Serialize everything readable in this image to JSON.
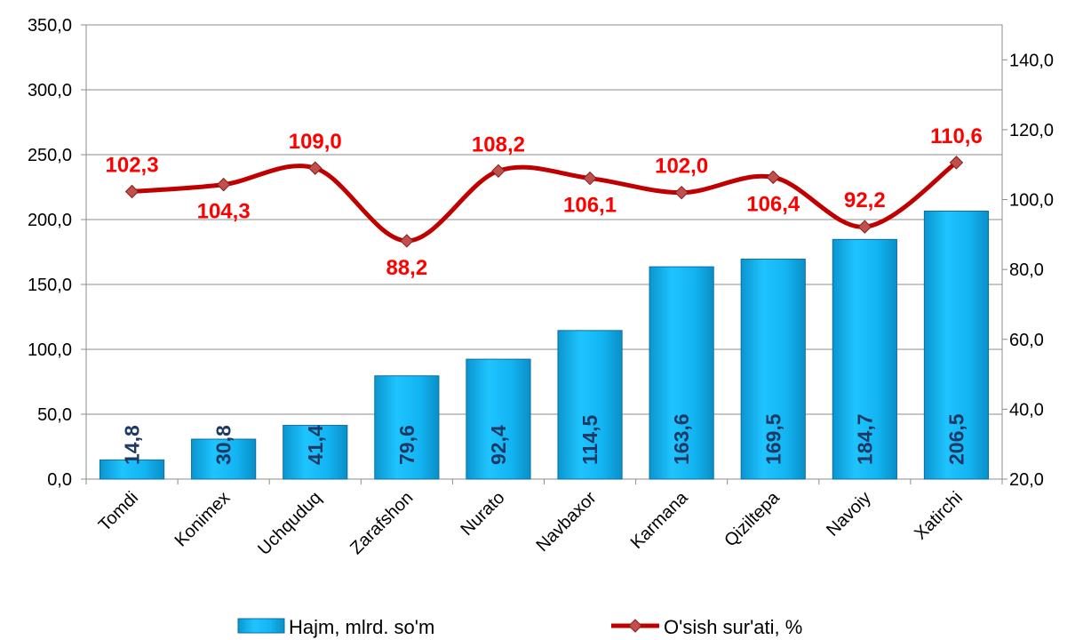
{
  "chart_data": {
    "type": "bar+line",
    "categories": [
      "Tomdi",
      "Konimex",
      "Uchquduq",
      "Zarafshon",
      "Nurato",
      "Navbaxor",
      "Karmana",
      "Qiziltepa",
      "Navoiy",
      "Xatirchi"
    ],
    "series": [
      {
        "name": "Hajm, mlrd. so'm",
        "type": "bar",
        "axis": "left",
        "values": [
          14.8,
          30.8,
          41.4,
          79.6,
          92.4,
          114.5,
          163.6,
          169.5,
          184.7,
          206.5
        ],
        "labels": [
          "14,8",
          "30,8",
          "41,4",
          "79,6",
          "92,4",
          "114,5",
          "163,6",
          "169,5",
          "184,7",
          "206,5"
        ]
      },
      {
        "name": "O'sish sur'ati, %",
        "type": "line",
        "axis": "right",
        "values": [
          102.3,
          104.3,
          109.0,
          88.2,
          108.2,
          106.1,
          102.0,
          106.4,
          92.2,
          110.6
        ],
        "labels": [
          "102,3",
          "104,3",
          "109,0",
          "88,2",
          "108,2",
          "106,1",
          "102,0",
          "106,4",
          "92,2",
          "110,6"
        ]
      }
    ],
    "y_left": {
      "min": 0,
      "max": 350,
      "ticks": [
        "0,0",
        "50,0",
        "100,0",
        "150,0",
        "200,0",
        "250,0",
        "300,0",
        "350,0"
      ]
    },
    "y_right": {
      "min": 20,
      "max": 150,
      "ticks": [
        "20,0",
        "40,0",
        "60,0",
        "80,0",
        "100,0",
        "120,0",
        "140,0"
      ]
    },
    "grid": true,
    "legend_position": "bottom",
    "colors": {
      "bar": "#00b0f0",
      "bar_edge": "#0b6fa3",
      "line": "#c00000",
      "marker": "#c0504d",
      "line_label": "#ff0000",
      "bar_label": "#1f3864"
    }
  }
}
